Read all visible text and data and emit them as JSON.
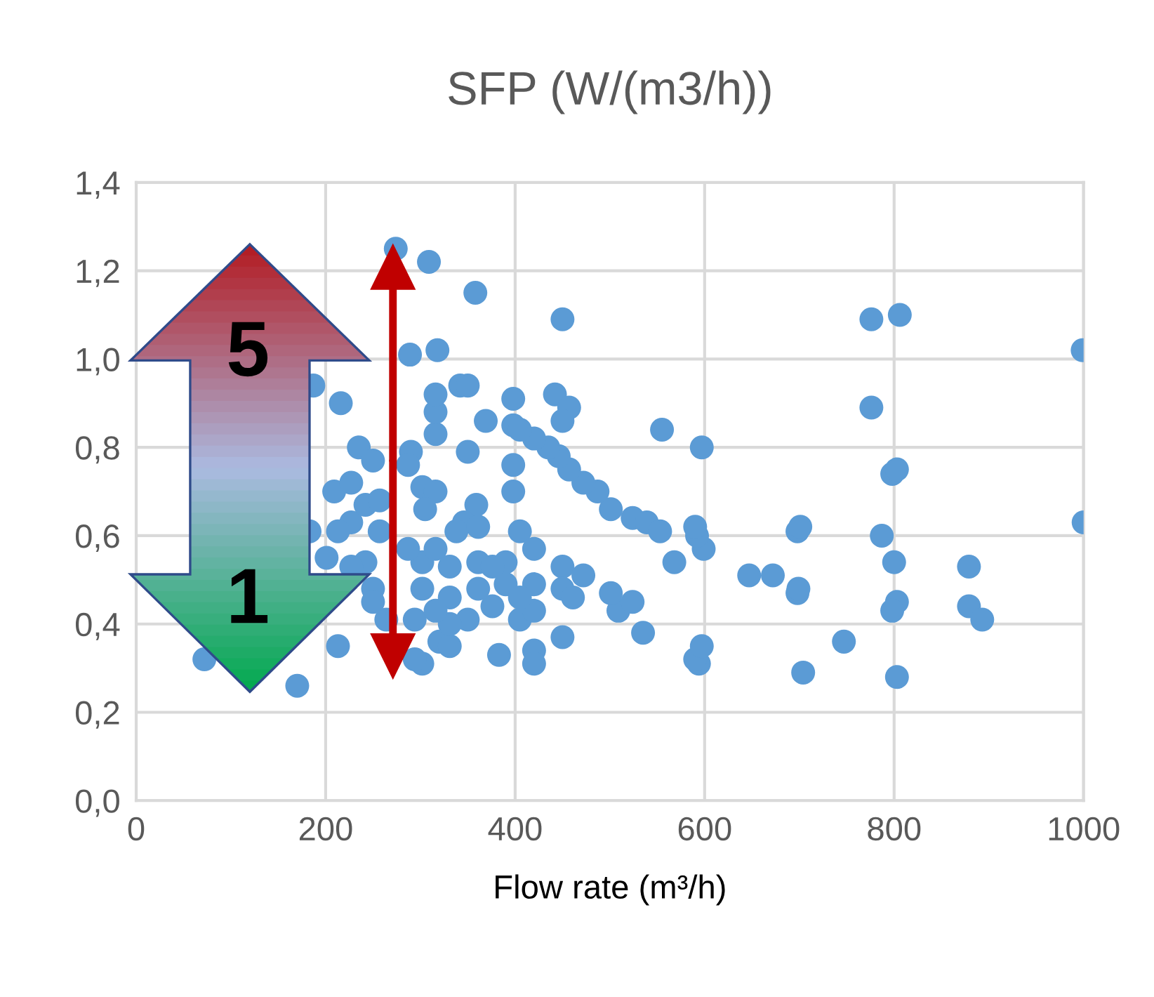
{
  "chart_data": {
    "type": "scatter",
    "title": "SFP (W/(m3/h))",
    "xlabel": "Flow rate (m³/h)",
    "annotations": [
      "5",
      "1"
    ],
    "xlim": [
      0,
      1000
    ],
    "xticks": [
      0,
      200,
      400,
      600,
      800,
      1000
    ],
    "ylim": [
      0,
      1.4
    ],
    "yticks": [
      {
        "value": 0,
        "label": "0,0"
      },
      {
        "value": 0.2,
        "label": "0,2"
      },
      {
        "value": 0.4,
        "label": "0,4"
      },
      {
        "value": 0.6,
        "label": "0,6"
      },
      {
        "value": 0.8,
        "label": "0,8"
      },
      {
        "value": 1.0,
        "label": "1,0"
      },
      {
        "value": 1.2,
        "label": "1,2"
      },
      {
        "value": 1.4,
        "label": "1,4"
      }
    ],
    "grid": true,
    "marker": "circle",
    "series": [
      {
        "color": "#5b9bd5",
        "x": [
          274,
          309,
          358,
          450,
          776,
          806,
          999,
          1000,
          776,
          798,
          803,
          787,
          800,
          803,
          798,
          879,
          879,
          893,
          803,
          747,
          704,
          698,
          699,
          698,
          701,
          672,
          647,
          597,
          555,
          599,
          592,
          590,
          568,
          594,
          590,
          597,
          535,
          509,
          524,
          501,
          501,
          524,
          539,
          553,
          487,
          472,
          457,
          446,
          435,
          420,
          398,
          442,
          457,
          450,
          398,
          405,
          369,
          350,
          316,
          316,
          316,
          342,
          350,
          318,
          289,
          187,
          216,
          235,
          209,
          227,
          227,
          213,
          201,
          290,
          287,
          250,
          302,
          316,
          305,
          359,
          346,
          398,
          398,
          405,
          420,
          450,
          450,
          461,
          472,
          450,
          383,
          420,
          420,
          320,
          331,
          302,
          294,
          213,
          170,
          72,
          294,
          350,
          376,
          405,
          420,
          390,
          361,
          331,
          302,
          250,
          242,
          227,
          302,
          287,
          316,
          338,
          361,
          331,
          361,
          390,
          420,
          405,
          376,
          257,
          242,
          257,
          264,
          250,
          331,
          316,
          183
        ],
        "values": [
          1.25,
          1.22,
          1.15,
          1.09,
          1.09,
          1.1,
          1.02,
          0.63,
          0.89,
          0.74,
          0.75,
          0.6,
          0.54,
          0.45,
          0.43,
          0.53,
          0.44,
          0.41,
          0.28,
          0.36,
          0.29,
          0.47,
          0.48,
          0.61,
          0.62,
          0.51,
          0.51,
          0.8,
          0.84,
          0.57,
          0.6,
          0.62,
          0.54,
          0.31,
          0.32,
          0.35,
          0.38,
          0.43,
          0.45,
          0.47,
          0.66,
          0.64,
          0.63,
          0.61,
          0.7,
          0.72,
          0.75,
          0.78,
          0.8,
          0.82,
          0.91,
          0.92,
          0.89,
          0.86,
          0.85,
          0.84,
          0.86,
          0.79,
          0.83,
          0.88,
          0.92,
          0.94,
          0.94,
          1.02,
          1.01,
          0.94,
          0.9,
          0.8,
          0.7,
          0.72,
          0.63,
          0.61,
          0.55,
          0.79,
          0.76,
          0.77,
          0.71,
          0.7,
          0.66,
          0.67,
          0.63,
          0.76,
          0.7,
          0.61,
          0.57,
          0.53,
          0.48,
          0.46,
          0.51,
          0.37,
          0.33,
          0.34,
          0.31,
          0.36,
          0.35,
          0.31,
          0.32,
          0.35,
          0.26,
          0.32,
          0.41,
          0.41,
          0.44,
          0.41,
          0.43,
          0.49,
          0.48,
          0.46,
          0.48,
          0.48,
          0.54,
          0.53,
          0.54,
          0.57,
          0.57,
          0.61,
          0.62,
          0.53,
          0.54,
          0.54,
          0.49,
          0.46,
          0.53,
          0.61,
          0.67,
          0.68,
          0.41,
          0.45,
          0.4,
          0.43,
          0.61
        ]
      }
    ]
  }
}
